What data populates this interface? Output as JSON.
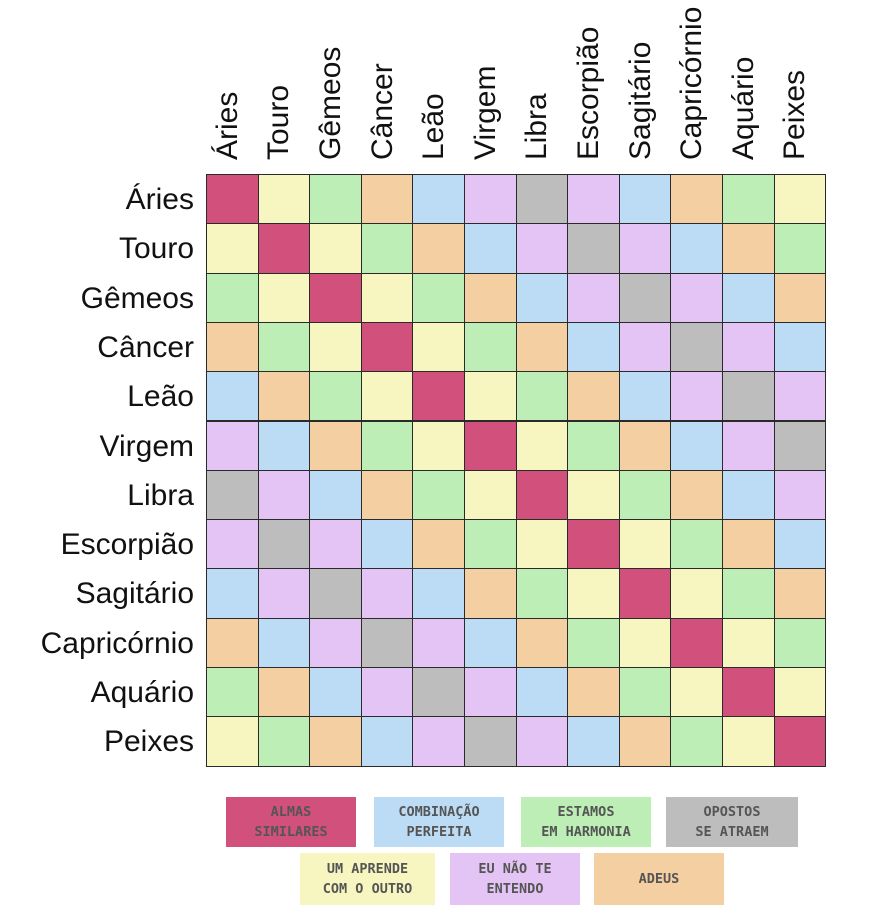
{
  "chart_data": {
    "type": "heatmap",
    "rows": [
      "Áries",
      "Touro",
      "Gêmeos",
      "Câncer",
      "Leão",
      "Virgem",
      "Libra",
      "Escorpião",
      "Sagitário",
      "Capricórnio",
      "Aquário",
      "Peixes"
    ],
    "columns": [
      "Áries",
      "Touro",
      "Gêmeos",
      "Câncer",
      "Leão",
      "Virgem",
      "Libra",
      "Escorpião",
      "Sagitário",
      "Capricórnio",
      "Aquário",
      "Peixes"
    ],
    "categories": [
      {
        "key": "almas",
        "line1": "ALMAS",
        "line2": "SIMILARES",
        "color": "#d2507c"
      },
      {
        "key": "combinacao",
        "line1": "COMBINAÇÃO",
        "line2": "PERFEITA",
        "color": "#bcdcf6"
      },
      {
        "key": "harmonia",
        "line1": "ESTAMOS",
        "line2": "EM HARMONIA",
        "color": "#bdeeb6"
      },
      {
        "key": "opostos",
        "line1": "OPOSTOS",
        "line2": "SE ATRAEM",
        "color": "#bdbdbd"
      },
      {
        "key": "aprende",
        "line1": "UM APRENDE",
        "line2": "COM O OUTRO",
        "color": "#f7f5c0"
      },
      {
        "key": "naoentendo",
        "line1": "EU NÃO TE",
        "line2": "ENTENDO",
        "color": "#e4c4f4"
      },
      {
        "key": "adeus",
        "line1": "ADEUS",
        "line2": "",
        "color": "#f3cfa2"
      }
    ],
    "matrix": [
      [
        "A",
        "Y",
        "G",
        "O",
        "B",
        "P",
        "X",
        "P",
        "B",
        "O",
        "G",
        "Y"
      ],
      [
        "Y",
        "A",
        "Y",
        "G",
        "O",
        "B",
        "P",
        "X",
        "P",
        "B",
        "O",
        "G"
      ],
      [
        "G",
        "Y",
        "A",
        "Y",
        "G",
        "O",
        "B",
        "P",
        "X",
        "P",
        "B",
        "O"
      ],
      [
        "O",
        "G",
        "Y",
        "A",
        "Y",
        "G",
        "O",
        "B",
        "P",
        "X",
        "P",
        "B"
      ],
      [
        "B",
        "O",
        "G",
        "Y",
        "A",
        "Y",
        "G",
        "O",
        "B",
        "P",
        "X",
        "P"
      ],
      [
        "P",
        "B",
        "O",
        "G",
        "Y",
        "A",
        "Y",
        "G",
        "O",
        "B",
        "P",
        "X"
      ],
      [
        "X",
        "P",
        "B",
        "O",
        "G",
        "Y",
        "A",
        "Y",
        "G",
        "O",
        "B",
        "P"
      ],
      [
        "P",
        "X",
        "P",
        "B",
        "O",
        "G",
        "Y",
        "A",
        "Y",
        "G",
        "O",
        "B"
      ],
      [
        "B",
        "P",
        "X",
        "P",
        "B",
        "O",
        "G",
        "Y",
        "A",
        "Y",
        "G",
        "O"
      ],
      [
        "O",
        "B",
        "P",
        "X",
        "P",
        "B",
        "O",
        "G",
        "Y",
        "A",
        "Y",
        "G"
      ],
      [
        "G",
        "O",
        "B",
        "P",
        "X",
        "P",
        "B",
        "O",
        "G",
        "Y",
        "A",
        "Y"
      ],
      [
        "Y",
        "G",
        "O",
        "B",
        "P",
        "X",
        "P",
        "B",
        "O",
        "G",
        "Y",
        "A"
      ]
    ],
    "code_legend": {
      "A": "almas",
      "B": "combinacao",
      "G": "harmonia",
      "X": "opostos",
      "Y": "aprende",
      "P": "naoentendo",
      "O": "adeus"
    }
  }
}
